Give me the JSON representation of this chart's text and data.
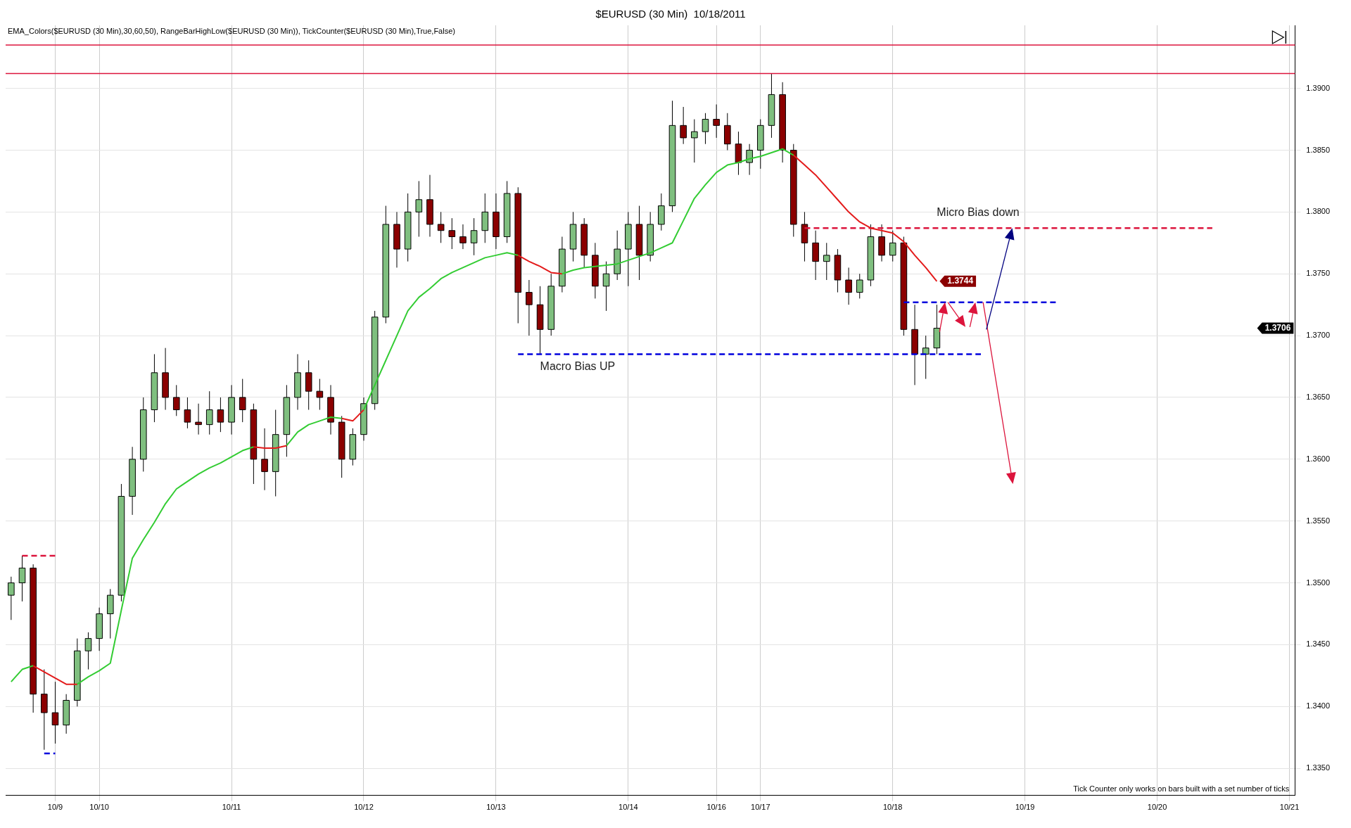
{
  "chart_data": {
    "type": "candlestick",
    "title": "$EURUSD (30 Min)  10/18/2011",
    "categories": [
      null,
      null,
      null,
      null,
      "10/9",
      null,
      null,
      null,
      "10/10",
      null,
      null,
      null,
      null,
      null,
      null,
      null,
      null,
      null,
      null,
      null,
      "10/11",
      null,
      null,
      null,
      null,
      null,
      null,
      null,
      null,
      null,
      null,
      null,
      "10/12",
      null,
      null,
      null,
      null,
      null,
      null,
      null,
      null,
      null,
      null,
      null,
      "10/13",
      null,
      null,
      null,
      null,
      null,
      null,
      null,
      null,
      null,
      null,
      null,
      "10/14",
      null,
      null,
      null,
      null,
      null,
      null,
      null,
      "10/16",
      null,
      null,
      null,
      "10/17",
      null,
      null,
      null,
      null,
      null,
      null,
      null,
      null,
      null,
      null,
      null,
      "10/18",
      null,
      null,
      null,
      null,
      null,
      null,
      null,
      null,
      null,
      null,
      null,
      "10/19",
      null,
      null,
      null,
      null,
      null,
      null,
      null,
      null,
      null,
      null,
      null,
      "10/20",
      null,
      null,
      null,
      null,
      null,
      null,
      null,
      null,
      null,
      null,
      null,
      "10/21"
    ],
    "ohlc": [
      [
        1.349,
        1.3505,
        1.347,
        1.35
      ],
      [
        1.35,
        1.3522,
        1.3485,
        1.3512
      ],
      [
        1.3512,
        1.3515,
        1.3395,
        1.341
      ],
      [
        1.341,
        1.343,
        1.3365,
        1.3395
      ],
      [
        1.3395,
        1.342,
        1.337,
        1.3385
      ],
      [
        1.3385,
        1.341,
        1.3378,
        1.3405
      ],
      [
        1.3405,
        1.3455,
        1.34,
        1.3445
      ],
      [
        1.3445,
        1.346,
        1.343,
        1.3455
      ],
      [
        1.3455,
        1.348,
        1.3445,
        1.3475
      ],
      [
        1.3475,
        1.3495,
        1.3455,
        1.349
      ],
      [
        1.349,
        1.358,
        1.3485,
        1.357
      ],
      [
        1.357,
        1.361,
        1.3555,
        1.36
      ],
      [
        1.36,
        1.365,
        1.359,
        1.364
      ],
      [
        1.364,
        1.3685,
        1.363,
        1.367
      ],
      [
        1.367,
        1.369,
        1.364,
        1.365
      ],
      [
        1.365,
        1.366,
        1.3635,
        1.364
      ],
      [
        1.364,
        1.365,
        1.3625,
        1.363
      ],
      [
        1.363,
        1.3645,
        1.362,
        1.3628
      ],
      [
        1.3628,
        1.3655,
        1.362,
        1.364
      ],
      [
        1.364,
        1.365,
        1.3622,
        1.363
      ],
      [
        1.363,
        1.366,
        1.362,
        1.365
      ],
      [
        1.365,
        1.3665,
        1.363,
        1.364
      ],
      [
        1.364,
        1.3645,
        1.358,
        1.36
      ],
      [
        1.36,
        1.3625,
        1.3575,
        1.359
      ],
      [
        1.359,
        1.364,
        1.357,
        1.362
      ],
      [
        1.362,
        1.366,
        1.3602,
        1.365
      ],
      [
        1.365,
        1.3685,
        1.364,
        1.367
      ],
      [
        1.367,
        1.368,
        1.364,
        1.3655
      ],
      [
        1.3655,
        1.3665,
        1.364,
        1.365
      ],
      [
        1.365,
        1.366,
        1.362,
        1.363
      ],
      [
        1.363,
        1.3635,
        1.3585,
        1.36
      ],
      [
        1.36,
        1.3625,
        1.3595,
        1.362
      ],
      [
        1.362,
        1.365,
        1.3615,
        1.3645
      ],
      [
        1.3645,
        1.372,
        1.364,
        1.3715
      ],
      [
        1.3715,
        1.3805,
        1.371,
        1.379
      ],
      [
        1.379,
        1.38,
        1.3755,
        1.377
      ],
      [
        1.377,
        1.3815,
        1.376,
        1.38
      ],
      [
        1.38,
        1.3825,
        1.378,
        1.381
      ],
      [
        1.381,
        1.383,
        1.378,
        1.379
      ],
      [
        1.379,
        1.38,
        1.3775,
        1.3785
      ],
      [
        1.3785,
        1.3795,
        1.377,
        1.378
      ],
      [
        1.378,
        1.379,
        1.377,
        1.3775
      ],
      [
        1.3775,
        1.3795,
        1.3765,
        1.3785
      ],
      [
        1.3785,
        1.3815,
        1.3775,
        1.38
      ],
      [
        1.38,
        1.3815,
        1.377,
        1.378
      ],
      [
        1.378,
        1.3825,
        1.3775,
        1.3815
      ],
      [
        1.3815,
        1.382,
        1.371,
        1.3735
      ],
      [
        1.3735,
        1.3745,
        1.37,
        1.3725
      ],
      [
        1.3725,
        1.374,
        1.3685,
        1.3705
      ],
      [
        1.3705,
        1.375,
        1.37,
        1.374
      ],
      [
        1.374,
        1.378,
        1.3735,
        1.377
      ],
      [
        1.377,
        1.38,
        1.376,
        1.379
      ],
      [
        1.379,
        1.3795,
        1.3755,
        1.3765
      ],
      [
        1.3765,
        1.3775,
        1.373,
        1.374
      ],
      [
        1.374,
        1.376,
        1.372,
        1.375
      ],
      [
        1.375,
        1.3785,
        1.3745,
        1.377
      ],
      [
        1.377,
        1.38,
        1.374,
        1.379
      ],
      [
        1.379,
        1.3805,
        1.3745,
        1.3765
      ],
      [
        1.3765,
        1.38,
        1.376,
        1.379
      ],
      [
        1.379,
        1.3815,
        1.3785,
        1.3805
      ],
      [
        1.3805,
        1.389,
        1.38,
        1.387
      ],
      [
        1.387,
        1.3885,
        1.3855,
        1.386
      ],
      [
        1.386,
        1.3875,
        1.384,
        1.3865
      ],
      [
        1.3865,
        1.388,
        1.3855,
        1.3875
      ],
      [
        1.3875,
        1.3887,
        1.386,
        1.387
      ],
      [
        1.387,
        1.388,
        1.385,
        1.3855
      ],
      [
        1.3855,
        1.3865,
        1.383,
        1.384
      ],
      [
        1.384,
        1.3855,
        1.383,
        1.385
      ],
      [
        1.385,
        1.3875,
        1.3835,
        1.387
      ],
      [
        1.387,
        1.3912,
        1.386,
        1.3895
      ],
      [
        1.3895,
        1.3905,
        1.384,
        1.385
      ],
      [
        1.385,
        1.3855,
        1.378,
        1.379
      ],
      [
        1.379,
        1.38,
        1.376,
        1.3775
      ],
      [
        1.3775,
        1.3785,
        1.3745,
        1.376
      ],
      [
        1.376,
        1.3775,
        1.3745,
        1.3765
      ],
      [
        1.3765,
        1.377,
        1.3735,
        1.3745
      ],
      [
        1.3745,
        1.3755,
        1.3725,
        1.3735
      ],
      [
        1.3735,
        1.375,
        1.373,
        1.3745
      ],
      [
        1.3745,
        1.379,
        1.374,
        1.378
      ],
      [
        1.378,
        1.379,
        1.376,
        1.3765
      ],
      [
        1.3765,
        1.3785,
        1.376,
        1.3775
      ],
      [
        1.3775,
        1.378,
        1.37,
        1.3705
      ],
      [
        1.3705,
        1.3725,
        1.366,
        1.3685
      ],
      [
        1.3685,
        1.37,
        1.3665,
        1.369
      ],
      [
        1.369,
        1.3725,
        1.3685,
        1.3706
      ],
      null,
      null,
      null,
      null,
      null,
      null,
      null,
      null,
      null,
      null,
      null,
      null,
      null,
      null,
      null,
      null,
      null,
      null,
      null,
      null,
      null,
      null,
      null,
      null,
      null,
      null,
      null,
      null,
      null,
      null,
      null,
      null
    ],
    "value_labels": [
      null,
      null,
      null,
      null,
      null,
      null,
      null,
      null,
      null,
      null,
      null,
      null,
      null,
      null,
      null,
      null,
      null,
      null,
      null,
      null,
      null,
      null,
      null,
      null,
      null,
      null,
      null,
      null,
      null,
      null,
      null,
      null,
      null,
      null,
      null,
      null,
      null,
      null,
      null,
      null,
      null,
      null,
      null,
      null,
      null,
      null,
      null,
      null,
      null,
      null,
      null,
      null,
      null,
      null,
      null,
      null,
      null,
      null,
      null,
      null,
      null,
      null,
      null,
      null,
      null,
      null,
      null,
      null,
      null,
      null,
      null,
      null,
      null,
      null,
      null,
      null,
      null,
      null,
      null,
      null,
      null,
      null,
      null,
      null,
      "1.3706",
      null,
      null,
      null,
      null,
      null,
      null,
      null,
      null,
      null,
      null,
      null,
      null,
      null,
      null,
      null,
      null,
      null,
      null,
      null,
      null,
      null,
      null,
      null,
      null,
      null,
      null,
      null,
      null,
      null,
      null,
      null,
      null
    ],
    "series": [
      {
        "type": "line",
        "color": "#33cc33",
        "values": [
          1.342,
          1.343,
          1.3433,
          null,
          null,
          null,
          1.3418,
          1.3424,
          1.3429,
          1.3435,
          1.3478,
          1.352,
          1.3535,
          1.3549,
          1.3564,
          1.3576,
          1.3582,
          1.3588,
          1.3593,
          1.3597,
          1.3602,
          1.3607,
          1.361,
          null,
          null,
          1.3611,
          1.3622,
          1.3628,
          1.3631,
          1.3634,
          1.3633,
          null,
          1.364,
          1.366,
          1.368,
          1.37,
          1.372,
          1.3731,
          1.3738,
          1.3746,
          1.3751,
          1.3755,
          1.3759,
          1.3763,
          1.3765,
          1.3767,
          1.3765,
          null,
          null,
          null,
          1.375,
          1.3753,
          1.3755,
          1.3756,
          1.3757,
          1.3758,
          1.3761,
          1.3764,
          1.3767,
          1.3771,
          1.3775,
          1.3793,
          1.3811,
          1.3822,
          1.3832,
          1.3838,
          1.384,
          1.3843,
          1.3845,
          1.3848,
          1.3851,
          1.3846,
          null,
          null,
          null,
          null,
          null,
          null,
          null,
          null,
          null,
          null,
          null,
          null,
          null,
          null,
          null,
          null,
          null,
          null,
          null,
          null,
          null,
          null,
          null,
          null,
          null,
          null,
          null,
          null,
          null,
          null,
          null,
          null,
          null,
          null,
          null,
          null,
          null,
          null,
          null,
          null,
          null,
          null,
          null,
          null,
          null
        ]
      },
      {
        "type": "line",
        "color": "#e31b1b",
        "values": [
          null,
          null,
          1.3433,
          1.3428,
          1.3423,
          1.3418,
          1.3418,
          null,
          null,
          null,
          null,
          null,
          null,
          null,
          null,
          null,
          null,
          null,
          null,
          null,
          null,
          null,
          1.361,
          1.3609,
          1.3609,
          1.3611,
          null,
          null,
          null,
          null,
          1.3633,
          1.3631,
          1.364,
          null,
          null,
          null,
          null,
          null,
          null,
          null,
          null,
          null,
          null,
          null,
          null,
          null,
          1.3765,
          1.376,
          1.3756,
          1.3751,
          1.375,
          null,
          null,
          null,
          null,
          null,
          null,
          null,
          null,
          null,
          null,
          null,
          null,
          null,
          null,
          null,
          null,
          null,
          null,
          null,
          null,
          1.3846,
          1.3838,
          1.383,
          1.382,
          1.381,
          1.38,
          1.3792,
          1.3787,
          1.3785,
          1.3783,
          1.3776,
          1.3765,
          1.3755,
          1.3744,
          null,
          null,
          null,
          null,
          null,
          null,
          null,
          null,
          null,
          null,
          null,
          null,
          null,
          null,
          null,
          null,
          null,
          null,
          null,
          null,
          null,
          null,
          null,
          null,
          null,
          null,
          null,
          null,
          null,
          null,
          null,
          null
        ],
        "value_labels": [
          null,
          null,
          null,
          null,
          null,
          null,
          null,
          null,
          null,
          null,
          null,
          null,
          null,
          null,
          null,
          null,
          null,
          null,
          null,
          null,
          null,
          null,
          null,
          null,
          null,
          null,
          null,
          null,
          null,
          null,
          null,
          null,
          null,
          null,
          null,
          null,
          null,
          null,
          null,
          null,
          null,
          null,
          null,
          null,
          null,
          null,
          null,
          null,
          null,
          null,
          null,
          null,
          null,
          null,
          null,
          null,
          null,
          null,
          null,
          null,
          null,
          null,
          null,
          null,
          null,
          null,
          null,
          null,
          null,
          null,
          null,
          null,
          null,
          null,
          null,
          null,
          null,
          null,
          null,
          null,
          null,
          null,
          null,
          null,
          "1.3744",
          null,
          null,
          null,
          null,
          null,
          null,
          null,
          null,
          null,
          null,
          null,
          null,
          null,
          null,
          null,
          null,
          null,
          null,
          null,
          null,
          null,
          null,
          null,
          null,
          null,
          null,
          null,
          null,
          null,
          null,
          null,
          null
        ]
      },
      {
        "type": "line",
        "name": "Micro Bias down",
        "line_style": "dashed",
        "color": "#dc143c",
        "values": [
          null,
          null,
          null,
          null,
          null,
          null,
          null,
          null,
          null,
          null,
          null,
          null,
          null,
          null,
          null,
          null,
          null,
          null,
          null,
          null,
          null,
          null,
          null,
          null,
          null,
          null,
          null,
          null,
          null,
          null,
          null,
          null,
          null,
          null,
          null,
          null,
          null,
          null,
          null,
          null,
          null,
          null,
          null,
          null,
          null,
          null,
          null,
          null,
          null,
          null,
          null,
          null,
          null,
          null,
          null,
          null,
          null,
          null,
          null,
          null,
          null,
          null,
          null,
          null,
          null,
          null,
          null,
          null,
          null,
          null,
          null,
          null,
          1.3787,
          1.3787,
          1.3787,
          1.3787,
          1.3787,
          1.3787,
          1.3787,
          1.3787,
          1.3787,
          1.3787,
          1.3787,
          1.3787,
          1.3787,
          1.3787,
          1.3787,
          1.3787,
          1.3787,
          1.3787,
          1.3787,
          1.3787,
          1.3787,
          1.3787,
          1.3787,
          1.3787,
          1.3787,
          1.3787,
          1.3787,
          1.3787,
          1.3787,
          1.3787,
          1.3787,
          1.3787,
          1.3787,
          1.3787,
          1.3787,
          1.3787,
          1.3787,
          1.3787,
          null,
          null,
          null,
          null,
          null,
          null,
          null
        ]
      },
      {
        "type": "line",
        "line_style": "dashed",
        "color": "#0000dd",
        "values": [
          null,
          null,
          null,
          null,
          null,
          null,
          null,
          null,
          null,
          null,
          null,
          null,
          null,
          null,
          null,
          null,
          null,
          null,
          null,
          null,
          null,
          null,
          null,
          null,
          null,
          null,
          null,
          null,
          null,
          null,
          null,
          null,
          null,
          null,
          null,
          null,
          null,
          null,
          null,
          null,
          null,
          null,
          null,
          null,
          null,
          null,
          null,
          null,
          null,
          null,
          null,
          null,
          null,
          null,
          null,
          null,
          null,
          null,
          null,
          null,
          null,
          null,
          null,
          null,
          null,
          null,
          null,
          null,
          null,
          null,
          null,
          null,
          null,
          null,
          null,
          null,
          null,
          null,
          null,
          null,
          null,
          1.3727,
          1.3727,
          1.3727,
          1.3727,
          1.3727,
          1.3727,
          1.3727,
          1.3727,
          1.3727,
          1.3727,
          1.3727,
          1.3727,
          1.3727,
          1.3727,
          1.3727,
          null,
          null,
          null,
          null,
          null,
          null,
          null,
          null,
          null,
          null,
          null,
          null,
          null,
          null,
          null,
          null,
          null,
          null,
          null,
          null,
          null
        ]
      },
      {
        "type": "line",
        "name": "Macro Bias UP",
        "line_style": "dashed",
        "color": "#0000dd",
        "values": [
          null,
          null,
          null,
          null,
          null,
          null,
          null,
          null,
          null,
          null,
          null,
          null,
          null,
          null,
          null,
          null,
          null,
          null,
          null,
          null,
          null,
          null,
          null,
          null,
          null,
          null,
          null,
          null,
          null,
          null,
          null,
          null,
          null,
          null,
          null,
          null,
          null,
          null,
          null,
          null,
          null,
          null,
          null,
          null,
          null,
          null,
          1.3685,
          1.3685,
          1.3685,
          1.3685,
          1.3685,
          1.3685,
          1.3685,
          1.3685,
          1.3685,
          1.3685,
          1.3685,
          1.3685,
          1.3685,
          1.3685,
          1.3685,
          1.3685,
          1.3685,
          1.3685,
          1.3685,
          1.3685,
          1.3685,
          1.3685,
          1.3685,
          1.3685,
          1.3685,
          1.3685,
          1.3685,
          1.3685,
          1.3685,
          1.3685,
          1.3685,
          1.3685,
          1.3685,
          1.3685,
          1.3685,
          1.3685,
          1.3685,
          1.3685,
          1.3685,
          1.3685,
          1.3685,
          1.3685,
          1.3685,
          null,
          null,
          null,
          null,
          null,
          null,
          null,
          null,
          null,
          null,
          null,
          null,
          null,
          null,
          null,
          null,
          null,
          null,
          null,
          null,
          null,
          null,
          null,
          null,
          null,
          null,
          null,
          null
        ]
      },
      {
        "type": "line",
        "line_style": "dashed",
        "color": "#dc143c",
        "values": [
          null,
          1.3522,
          1.3522,
          1.3522,
          1.3522,
          null,
          null,
          null,
          null,
          null,
          null,
          null,
          null,
          null,
          null,
          null,
          null,
          null,
          null,
          null,
          null,
          null,
          null,
          null,
          null,
          null,
          null,
          null,
          null,
          null,
          null,
          null,
          null,
          null,
          null,
          null,
          null,
          null,
          null,
          null,
          null,
          null,
          null,
          null,
          null,
          null,
          null,
          null,
          null,
          null,
          null,
          null,
          null,
          null,
          null,
          null,
          null,
          null,
          null,
          null,
          null,
          null,
          null,
          null,
          null,
          null,
          null,
          null,
          null,
          null,
          null,
          null,
          null,
          null,
          null,
          null,
          null,
          null,
          null,
          null,
          null,
          null,
          null,
          null,
          null,
          null,
          null,
          null,
          null,
          null,
          null,
          null,
          null,
          null,
          null,
          null,
          null,
          null,
          null,
          null,
          null,
          null,
          null,
          null,
          null,
          null,
          null,
          null,
          null,
          null,
          null,
          null,
          null,
          null,
          null,
          null,
          null
        ]
      },
      {
        "type": "line",
        "line_style": "dashed",
        "color": "#0000dd",
        "values": [
          null,
          null,
          null,
          1.3362,
          1.3362,
          null,
          null,
          null,
          null,
          null,
          null,
          null,
          null,
          null,
          null,
          null,
          null,
          null,
          null,
          null,
          null,
          null,
          null,
          null,
          null,
          null,
          null,
          null,
          null,
          null,
          null,
          null,
          null,
          null,
          null,
          null,
          null,
          null,
          null,
          null,
          null,
          null,
          null,
          null,
          null,
          null,
          null,
          null,
          null,
          null,
          null,
          null,
          null,
          null,
          null,
          null,
          null,
          null,
          null,
          null,
          null,
          null,
          null,
          null,
          null,
          null,
          null,
          null,
          null,
          null,
          null,
          null,
          null,
          null,
          null,
          null,
          null,
          null,
          null,
          null,
          null,
          null,
          null,
          null,
          null,
          null,
          null,
          null,
          null,
          null,
          null,
          null,
          null,
          null,
          null,
          null,
          null,
          null,
          null,
          null,
          null,
          null,
          null,
          null,
          null,
          null,
          null,
          null,
          null,
          null,
          null,
          null,
          null,
          null,
          null,
          null,
          null
        ]
      }
    ],
    "ylim": [
      1.3328,
      1.3951
    ],
    "yticks": [
      {
        "value": 1.335,
        "label": "1.3350"
      },
      {
        "value": 1.34,
        "label": "1.3400"
      },
      {
        "value": 1.345,
        "label": "1.3450"
      },
      {
        "value": 1.35,
        "label": "1.3500"
      },
      {
        "value": 1.355,
        "label": "1.3550"
      },
      {
        "value": 1.36,
        "label": "1.3600"
      },
      {
        "value": 1.365,
        "label": "1.3650"
      },
      {
        "value": 1.37,
        "label": "1.3700"
      },
      {
        "value": 1.375,
        "label": "1.3750"
      },
      {
        "value": 1.38,
        "label": "1.3800"
      },
      {
        "value": 1.385,
        "label": "1.3850"
      },
      {
        "value": 1.39,
        "label": "1.3900"
      }
    ],
    "ref_lines": [
      {
        "axis": "y",
        "value": 1.3912,
        "color": "#dc143c"
      },
      {
        "axis": "y",
        "value": 1.3935,
        "color": "#dc143c"
      }
    ],
    "annotations": [
      "EMA_Colors($EURUSD (30 Min),30,60,50), RangeBarHighLow($EURUSD (30 Min)), TickCounter($EURUSD (30 Min),True,False)",
      "Tick Counter only works on bars built with a set number of ticks"
    ],
    "grid": true,
    "legend": false
  }
}
